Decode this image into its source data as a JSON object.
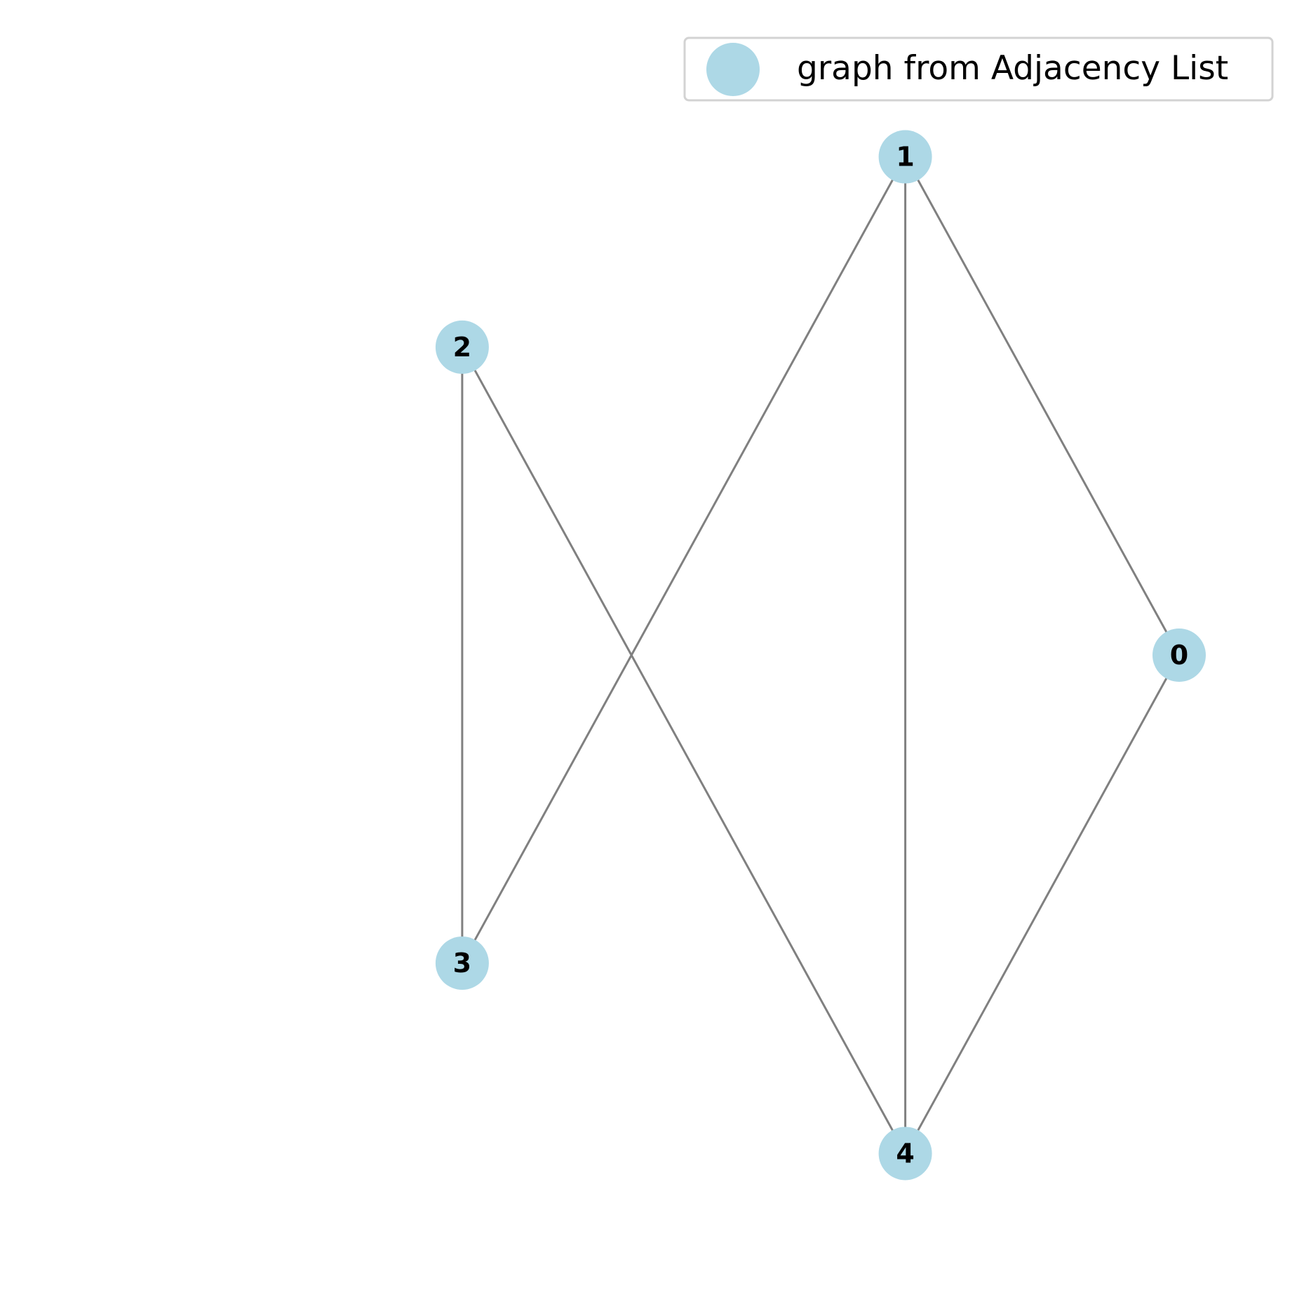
{
  "legend": {
    "label": "graph from Adjacency List",
    "marker_color": "#add8e6"
  },
  "colors": {
    "node": "#add8e6",
    "edge": "#808080",
    "label": "#000000",
    "legend_border": "#d3d3d3"
  },
  "graph": {
    "layout": "circular",
    "nodes": [
      "0",
      "1",
      "2",
      "3",
      "4"
    ],
    "edges": [
      [
        "0",
        "1"
      ],
      [
        "0",
        "4"
      ],
      [
        "1",
        "3"
      ],
      [
        "1",
        "4"
      ],
      [
        "2",
        "3"
      ],
      [
        "2",
        "4"
      ]
    ]
  }
}
